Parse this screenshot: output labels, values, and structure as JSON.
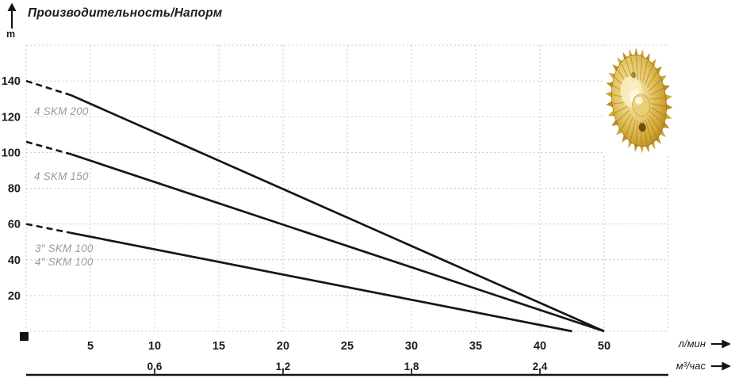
{
  "header": {
    "title": "Производительность/Напорм",
    "y_unit": "m"
  },
  "axis_units": {
    "primary": "л/мин",
    "secondary": "м³/час"
  },
  "annotations": {
    "skm200": "4 SKM 200",
    "skm150": "4 SKM 150",
    "skm100_3": "3″ SKM 100",
    "skm100_4": "4″ SKM 100"
  },
  "icons": {
    "up_arrow": "y-axis direction arrow",
    "right_arrow": "x-axis direction arrow",
    "origin_marker": "black square at axis origin",
    "impeller": "golden brass pump impeller photo"
  },
  "colors": {
    "curve": "#161616",
    "grid": "#c9c9c9",
    "annotation_text": "#9b9b9b",
    "text": "#1c1c1c",
    "axis_line": "#141414",
    "impeller_gold": "#d0a832",
    "background": "#ffffff"
  },
  "chart_data": {
    "type": "line",
    "title": "Производительность/Напорм",
    "ylabel": "m",
    "xlabel_primary": "л/мин",
    "xlabel_secondary": "м³/час",
    "ylim": [
      0,
      160
    ],
    "y_ticks": [
      20,
      40,
      60,
      80,
      100,
      120,
      140
    ],
    "x_ticks_lmin": [
      5,
      10,
      15,
      20,
      25,
      30,
      35,
      40,
      50
    ],
    "x_ticks_m3h": [
      {
        "label": "0,6",
        "at_lmin": 10
      },
      {
        "label": "1,2",
        "at_lmin": 20
      },
      {
        "label": "1,8",
        "at_lmin": 30
      },
      {
        "label": "2,4",
        "at_lmin": 40
      }
    ],
    "x_scale_note": "ticks equally spaced on grid; interval 40→50 occupies a single grid step",
    "grid": true,
    "legend_position": "labels next to curves",
    "series": [
      {
        "name": "4 SKM 200",
        "dashed_until_lmin": 3.5,
        "points": [
          [
            0,
            140
          ],
          [
            3.5,
            132
          ],
          [
            50,
            0
          ]
        ]
      },
      {
        "name": "4 SKM 150",
        "dashed_until_lmin": 3.5,
        "points": [
          [
            0,
            106
          ],
          [
            3.5,
            99
          ],
          [
            50,
            0
          ]
        ]
      },
      {
        "name": "3″ SKM 100 / 4″ SKM 100",
        "dashed_until_lmin": 3.5,
        "points": [
          [
            0,
            60
          ],
          [
            3.5,
            55
          ],
          [
            45,
            0
          ]
        ]
      }
    ]
  }
}
